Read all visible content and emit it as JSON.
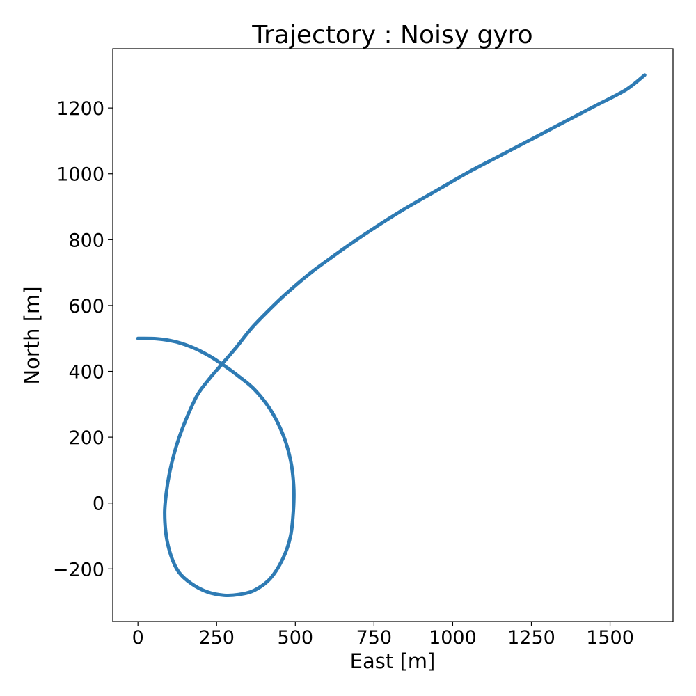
{
  "chart_data": {
    "type": "line",
    "title": "Trajectory : Noisy gyro",
    "xlabel": "East [m]",
    "ylabel": "North [m]",
    "xlim": [
      -80,
      1700
    ],
    "ylim": [
      -360,
      1380
    ],
    "grid": false,
    "x_ticks": [
      0,
      250,
      500,
      750,
      1000,
      1250,
      1500
    ],
    "x_tick_labels": [
      "0",
      "250",
      "500",
      "750",
      "1000",
      "1250",
      "1500"
    ],
    "y_ticks": [
      -200,
      0,
      200,
      400,
      600,
      800,
      1000,
      1200
    ],
    "y_tick_labels": [
      "−200",
      "0",
      "200",
      "400",
      "600",
      "800",
      "1000",
      "1200"
    ],
    "series": [
      {
        "color": "#2e7bb4",
        "points": [
          [
            0,
            500
          ],
          [
            60,
            499
          ],
          [
            120,
            490
          ],
          [
            180,
            470
          ],
          [
            230,
            445
          ],
          [
            270,
            420
          ],
          [
            320,
            385
          ],
          [
            370,
            345
          ],
          [
            420,
            285
          ],
          [
            460,
            210
          ],
          [
            485,
            130
          ],
          [
            495,
            50
          ],
          [
            494,
            -20
          ],
          [
            485,
            -100
          ],
          [
            460,
            -170
          ],
          [
            420,
            -230
          ],
          [
            370,
            -265
          ],
          [
            320,
            -278
          ],
          [
            272,
            -280
          ],
          [
            220,
            -270
          ],
          [
            170,
            -245
          ],
          [
            130,
            -210
          ],
          [
            105,
            -160
          ],
          [
            90,
            -100
          ],
          [
            85,
            -30
          ],
          [
            90,
            30
          ],
          [
            100,
            90
          ],
          [
            115,
            150
          ],
          [
            135,
            210
          ],
          [
            160,
            270
          ],
          [
            190,
            330
          ],
          [
            225,
            375
          ],
          [
            265,
            420
          ],
          [
            310,
            470
          ],
          [
            360,
            530
          ],
          [
            410,
            580
          ],
          [
            470,
            635
          ],
          [
            550,
            700
          ],
          [
            650,
            770
          ],
          [
            750,
            835
          ],
          [
            850,
            895
          ],
          [
            950,
            950
          ],
          [
            1050,
            1005
          ],
          [
            1150,
            1055
          ],
          [
            1250,
            1105
          ],
          [
            1350,
            1155
          ],
          [
            1450,
            1205
          ],
          [
            1550,
            1255
          ],
          [
            1610,
            1300
          ]
        ]
      }
    ]
  }
}
